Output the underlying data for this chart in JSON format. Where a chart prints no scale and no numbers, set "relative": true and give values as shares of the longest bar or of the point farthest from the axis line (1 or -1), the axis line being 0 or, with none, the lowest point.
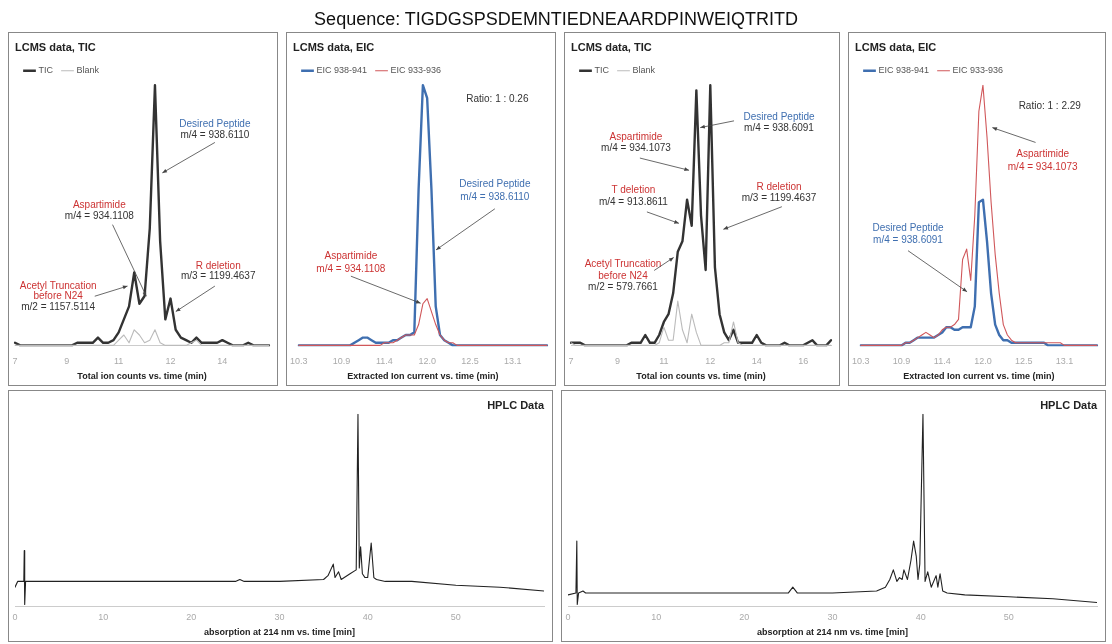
{
  "chart_data": [
    {
      "type": "other",
      "title": "Sequence: TIGDGSPSDEMNTIEDNEAARDPINWEIQTRITD"
    },
    {
      "type": "line",
      "title": "LCMS data, TIC",
      "xlabel": "Total ion counts vs. time (min)",
      "relative": true,
      "marker": "none",
      "legend": "top left",
      "categories": [
        "7",
        null,
        null,
        null,
        null,
        null,
        null,
        null,
        null,
        null,
        "9",
        null,
        null,
        null,
        null,
        null,
        null,
        null,
        null,
        null,
        "11",
        null,
        null,
        null,
        null,
        null,
        null,
        null,
        null,
        null,
        "12",
        null,
        null,
        null,
        null,
        null,
        null,
        null,
        null,
        null,
        "14",
        null,
        null,
        null,
        null,
        null,
        null,
        null,
        null,
        null
      ],
      "series": [
        {
          "name": "TIC",
          "color": "#333333",
          "values": [
            0.01,
            0,
            0,
            0,
            0,
            0,
            0,
            0,
            0,
            0,
            0,
            0,
            0.01,
            0.01,
            0.01,
            0.01,
            0.03,
            0.01,
            0.01,
            0.02,
            0.05,
            0.1,
            0.15,
            0.28,
            0.16,
            0.19,
            0.45,
            1.0,
            0.4,
            0.1,
            0.18,
            0.06,
            0.03,
            0.02,
            0.01,
            0.03,
            0.01,
            0.01,
            0.01,
            0.01,
            0.02,
            0.01,
            0,
            0,
            0,
            0.01,
            0,
            0,
            0,
            0
          ]
        },
        {
          "name": "Blank",
          "color": "#bbbbbb",
          "values": [
            0,
            0,
            0,
            0,
            0,
            0,
            0,
            0,
            0,
            0,
            0,
            0,
            0,
            0,
            0,
            0,
            0,
            0,
            0,
            0,
            0.02,
            0.04,
            0.01,
            0.06,
            0.04,
            0.01,
            0.02,
            0.06,
            0.01,
            0,
            0,
            0,
            0,
            0,
            0.01,
            0.02,
            0,
            0,
            0,
            0,
            0,
            0,
            0,
            0,
            0,
            0,
            0,
            0,
            0,
            0
          ]
        }
      ],
      "annotations": [
        "Desired Peptide",
        "m/4 = 938.6110",
        "Aspartimide",
        "m/4 = 934.1108",
        "R deletion",
        "m/3 = 1199.4637",
        "Acetyl Truncation",
        "before N24",
        "m/2 = 1157.5114"
      ]
    },
    {
      "type": "line",
      "title": "LCMS data, EIC",
      "xlabel": "Extracted Ion current vs. time (min)",
      "relative": true,
      "marker": "none",
      "legend": "top left",
      "categories": [
        "10.3",
        null,
        null,
        null,
        null,
        null,
        null,
        null,
        null,
        null,
        "10.9",
        null,
        null,
        null,
        null,
        null,
        null,
        null,
        null,
        null,
        "11.4",
        null,
        null,
        null,
        null,
        null,
        null,
        null,
        null,
        null,
        "12.0",
        null,
        null,
        null,
        null,
        null,
        null,
        null,
        null,
        null,
        "12.5",
        null,
        null,
        null,
        null,
        null,
        null,
        null,
        null,
        null,
        "13.1",
        null,
        null,
        null,
        null,
        null,
        null,
        null,
        null
      ],
      "series": [
        {
          "name": "EIC 938-941",
          "color": "#3f6fb0",
          "values": [
            0,
            0,
            0,
            0,
            0,
            0,
            0,
            0,
            0,
            0,
            0,
            0,
            0,
            0.01,
            0.02,
            0.03,
            0.03,
            0.02,
            0.01,
            0.01,
            0.01,
            0.01,
            0.02,
            0.02,
            0.03,
            0.04,
            0.04,
            0.05,
            0.6,
            1.0,
            0.95,
            0.6,
            0.15,
            0.04,
            0.02,
            0.01,
            0,
            0,
            0,
            0,
            0,
            0,
            0,
            0,
            0,
            0,
            0,
            0,
            0,
            0,
            0,
            0,
            0,
            0,
            0,
            0,
            0,
            0,
            0
          ]
        },
        {
          "name": "EIC 933-936",
          "color": "#d0575a",
          "values": [
            0,
            0,
            0,
            0,
            0,
            0,
            0,
            0,
            0,
            0,
            0,
            0,
            0,
            0,
            0,
            0,
            0,
            0,
            0,
            0,
            0.01,
            0.01,
            0.01,
            0.02,
            0.03,
            0.04,
            0.04,
            0.04,
            0.08,
            0.16,
            0.18,
            0.13,
            0.08,
            0.04,
            0.02,
            0.01,
            0.01,
            0,
            0,
            0,
            0,
            0,
            0,
            0,
            0,
            0,
            0,
            0,
            0,
            0,
            0,
            0,
            0,
            0,
            0,
            0,
            0,
            0,
            0
          ]
        }
      ],
      "annotations": [
        "Ratio: 1 : 0.26",
        "Desired Peptide",
        "m/4 = 938.6110",
        "Aspartimide",
        "m/4 = 934.1108"
      ]
    },
    {
      "type": "line",
      "title": "LCMS data, TIC",
      "xlabel": "Total ion counts vs. time (min)",
      "relative": true,
      "marker": "none",
      "legend": "top left",
      "categories": [
        "7",
        null,
        null,
        null,
        null,
        null,
        null,
        null,
        null,
        null,
        "9",
        null,
        null,
        null,
        null,
        null,
        null,
        null,
        null,
        null,
        "11",
        null,
        null,
        null,
        null,
        null,
        null,
        null,
        null,
        null,
        "12",
        null,
        null,
        null,
        null,
        null,
        null,
        null,
        null,
        null,
        "14",
        null,
        null,
        null,
        null,
        null,
        null,
        null,
        null,
        null,
        "16",
        null,
        null,
        null,
        null,
        null,
        null
      ],
      "series": [
        {
          "name": "TIC",
          "color": "#333333",
          "values": [
            0.01,
            0.01,
            0.01,
            0,
            0,
            0,
            0,
            0,
            0,
            0,
            0,
            0,
            0,
            0.01,
            0.01,
            0.01,
            0.04,
            0.01,
            0.01,
            0.04,
            0.09,
            0.12,
            0.2,
            0.36,
            0.4,
            0.56,
            0.46,
            0.98,
            0.5,
            0.29,
            1.0,
            0.3,
            0.12,
            0.05,
            0.02,
            0.06,
            0.01,
            0.01,
            0.01,
            0.01,
            0.04,
            0.01,
            0,
            0,
            0,
            0,
            0.01,
            0,
            0,
            0,
            0,
            0.01,
            0.02,
            0,
            0,
            0,
            0.02
          ]
        },
        {
          "name": "Blank",
          "color": "#bbbbbb",
          "values": [
            0.01,
            0,
            0,
            0,
            0,
            0,
            0,
            0,
            0,
            0,
            0,
            0,
            0,
            0,
            0,
            0,
            0,
            0,
            0,
            0.01,
            0.07,
            0.02,
            0.02,
            0.17,
            0.06,
            0.01,
            0.12,
            0.05,
            0,
            0,
            0,
            0,
            0,
            0.01,
            0.01,
            0.09,
            0.01,
            0,
            0,
            0,
            0,
            0,
            0,
            0,
            0,
            0,
            0,
            0,
            0,
            0,
            0,
            0,
            0,
            0,
            0,
            0,
            0
          ]
        }
      ],
      "annotations": [
        "Desired Peptide",
        "m/4 = 938.6091",
        "Aspartimide",
        "m/4 = 934.1073",
        "T deletion",
        "m/4 = 913.8611",
        "R deletion",
        "m/3 = 1199.4637",
        "Acetyl Truncation",
        "before N24",
        "m/2 = 579.7661"
      ]
    },
    {
      "type": "line",
      "title": "LCMS data, EIC",
      "xlabel": "Extracted Ion current vs. time (min)",
      "relative": true,
      "marker": "none",
      "legend": "top left",
      "categories": [
        "10.3",
        null,
        null,
        null,
        null,
        null,
        null,
        null,
        null,
        null,
        "10.9",
        null,
        null,
        null,
        null,
        null,
        null,
        null,
        null,
        null,
        "11.4",
        null,
        null,
        null,
        null,
        null,
        null,
        null,
        null,
        null,
        "12.0",
        null,
        null,
        null,
        null,
        null,
        null,
        null,
        null,
        null,
        "12.5",
        null,
        null,
        null,
        null,
        null,
        null,
        null,
        null,
        null,
        "13.1",
        null,
        null,
        null,
        null,
        null,
        null,
        null,
        null
      ],
      "series": [
        {
          "name": "EIC 938-941",
          "color": "#3f6fb0",
          "values": [
            0,
            0,
            0,
            0,
            0,
            0,
            0,
            0,
            0,
            0,
            0,
            0.01,
            0.01,
            0.02,
            0.03,
            0.03,
            0.03,
            0.03,
            0.03,
            0.04,
            0.05,
            0.07,
            0.07,
            0.06,
            0.06,
            0.07,
            0.07,
            0.07,
            0.15,
            0.55,
            0.56,
            0.4,
            0.2,
            0.08,
            0.04,
            0.02,
            0.02,
            0.01,
            0.01,
            0.01,
            0.01,
            0.01,
            0.01,
            0.01,
            0.01,
            0.01,
            0,
            0,
            0,
            0,
            0,
            0,
            0,
            0,
            0,
            0,
            0,
            0,
            0
          ]
        },
        {
          "name": "EIC 933-936",
          "color": "#d0575a",
          "values": [
            0,
            0,
            0,
            0,
            0,
            0,
            0,
            0,
            0,
            0,
            0,
            0.01,
            0.01,
            0.02,
            0.03,
            0.04,
            0.05,
            0.04,
            0.03,
            0.04,
            0.06,
            0.07,
            0.07,
            0.08,
            0.1,
            0.33,
            0.37,
            0.25,
            0.5,
            0.9,
            1.0,
            0.8,
            0.55,
            0.35,
            0.2,
            0.08,
            0.04,
            0.02,
            0.01,
            0.01,
            0.01,
            0.01,
            0.01,
            0.01,
            0.01,
            0.01,
            0.01,
            0.01,
            0.01,
            0.01,
            0,
            0,
            0,
            0,
            0,
            0,
            0,
            0,
            0
          ]
        }
      ],
      "annotations": [
        "Ratio: 1 : 2.29",
        "Aspartimide",
        "m/4 = 934.1073",
        "Desired Peptide",
        "m/4 = 938.6091"
      ]
    },
    {
      "type": "line",
      "title": "HPLC Data",
      "xlabel": "absorption at 214 nm vs. time [min]",
      "relative": true,
      "marker": "none",
      "xlim": [
        0,
        60
      ],
      "xticks": [
        0,
        10,
        20,
        30,
        40,
        50
      ],
      "series": [
        {
          "color": "#222222",
          "x": [
            0,
            0.3,
            1,
            1.05,
            1.1,
            1.2,
            5,
            10,
            15,
            20,
            25,
            25.5,
            26,
            30,
            35,
            35.5,
            36.1,
            36.3,
            36.7,
            37,
            38,
            38.7,
            38.9,
            39.05,
            39.2,
            39.4,
            39.7,
            40,
            40.4,
            40.7,
            41,
            42,
            45,
            50,
            55,
            60
          ],
          "values": [
            0.1,
            0.13,
            0.13,
            0.29,
            0.01,
            0.13,
            0.13,
            0.13,
            0.13,
            0.13,
            0.13,
            0.14,
            0.13,
            0.13,
            0.14,
            0.16,
            0.22,
            0.15,
            0.18,
            0.14,
            0.17,
            0.19,
            1.0,
            0.2,
            0.31,
            0.17,
            0.15,
            0.15,
            0.33,
            0.15,
            0.14,
            0.13,
            0.13,
            0.11,
            0.1,
            0.08
          ]
        }
      ]
    },
    {
      "type": "line",
      "title": "HPLC Data",
      "xlabel": "absorption at 214 nm vs. time [min]",
      "relative": true,
      "marker": "none",
      "xlim": [
        0,
        60
      ],
      "xticks": [
        0,
        10,
        20,
        30,
        40,
        50
      ],
      "series": [
        {
          "color": "#222222",
          "x": [
            0,
            0.9,
            1.0,
            1.05,
            1.2,
            1.7,
            2,
            10,
            20,
            25,
            25.5,
            26,
            30,
            35,
            36,
            36.5,
            36.9,
            37.3,
            37.6,
            37.9,
            38.1,
            38.5,
            38.9,
            39.2,
            39.5,
            39.7,
            39.9,
            40.26,
            40.5,
            40.8,
            41.2,
            41.75,
            41.95,
            42.2,
            42.5,
            43,
            45,
            50,
            55,
            60
          ],
          "values": [
            0.06,
            0.07,
            0.34,
            0.01,
            0.07,
            0.08,
            0.07,
            0.07,
            0.07,
            0.07,
            0.1,
            0.07,
            0.07,
            0.08,
            0.1,
            0.14,
            0.19,
            0.13,
            0.15,
            0.14,
            0.19,
            0.14,
            0.24,
            0.34,
            0.26,
            0.14,
            0.22,
            1.0,
            0.13,
            0.18,
            0.1,
            0.16,
            0.1,
            0.17,
            0.08,
            0.07,
            0.06,
            0.05,
            0.04,
            0.02
          ]
        }
      ]
    }
  ]
}
